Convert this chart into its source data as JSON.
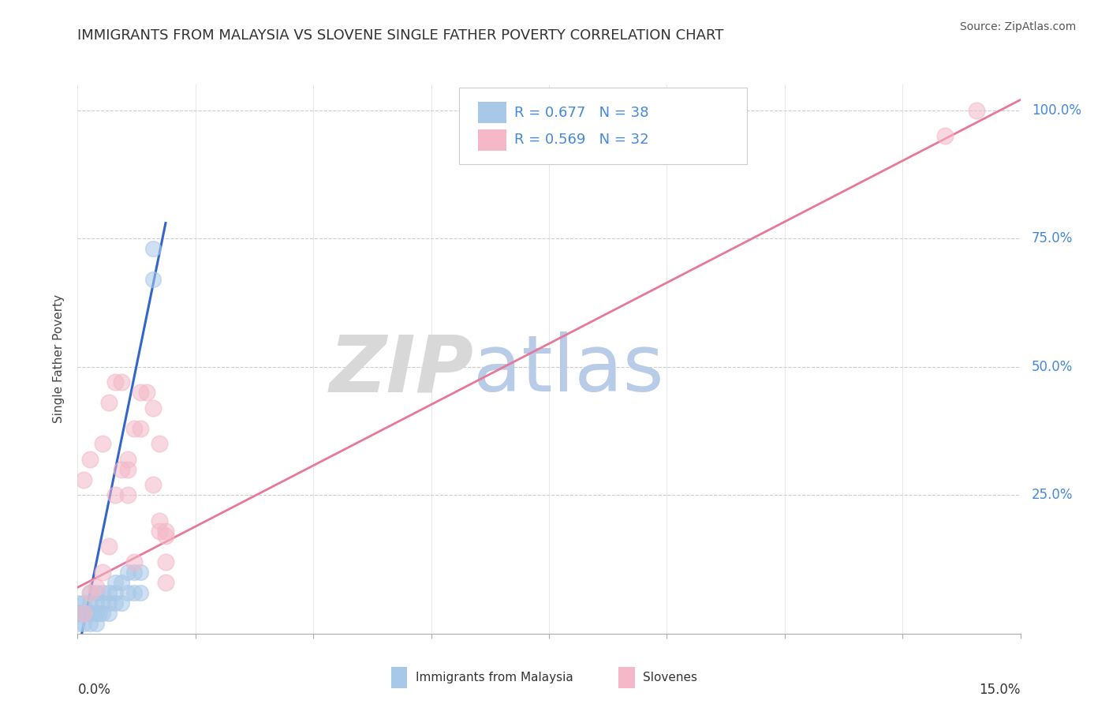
{
  "title": "IMMIGRANTS FROM MALAYSIA VS SLOVENE SINGLE FATHER POVERTY CORRELATION CHART",
  "source": "Source: ZipAtlas.com",
  "ylabel": "Single Father Poverty",
  "legend_label1": "Immigrants from Malaysia",
  "legend_label2": "Slovenes",
  "r1": 0.677,
  "n1": 38,
  "r2": 0.569,
  "n2": 32,
  "color_blue": "#a8c8e8",
  "color_blue_line": "#3366cc",
  "color_pink": "#f4b8c8",
  "color_pink_line": "#e87898",
  "xlim": [
    0.0,
    0.15
  ],
  "ylim": [
    -0.02,
    1.05
  ],
  "bg_color": "#ffffff",
  "grid_color": "#cccccc",
  "blue_x": [
    0.0003,
    0.0005,
    0.001,
    0.0015,
    0.001,
    0.002,
    0.002,
    0.0025,
    0.002,
    0.003,
    0.003,
    0.0035,
    0.003,
    0.004,
    0.004,
    0.004,
    0.005,
    0.005,
    0.005,
    0.006,
    0.006,
    0.006,
    0.007,
    0.007,
    0.008,
    0.008,
    0.009,
    0.009,
    0.01,
    0.01,
    0.0,
    0.0,
    0.0,
    0.001,
    0.002,
    0.003,
    0.012,
    0.012
  ],
  "blue_y": [
    0.02,
    0.02,
    0.02,
    0.02,
    0.04,
    0.02,
    0.04,
    0.02,
    0.06,
    0.02,
    0.04,
    0.02,
    0.06,
    0.02,
    0.04,
    0.06,
    0.02,
    0.04,
    0.06,
    0.04,
    0.06,
    0.08,
    0.04,
    0.08,
    0.06,
    0.1,
    0.06,
    0.1,
    0.06,
    0.1,
    0.02,
    0.04,
    0.0,
    0.0,
    0.0,
    0.0,
    0.67,
    0.73
  ],
  "pink_x": [
    0.001,
    0.002,
    0.002,
    0.003,
    0.004,
    0.004,
    0.005,
    0.005,
    0.006,
    0.006,
    0.007,
    0.007,
    0.008,
    0.008,
    0.008,
    0.009,
    0.009,
    0.01,
    0.01,
    0.011,
    0.012,
    0.012,
    0.013,
    0.013,
    0.013,
    0.014,
    0.014,
    0.014,
    0.014,
    0.001,
    0.138,
    0.143
  ],
  "pink_y": [
    0.28,
    0.32,
    0.06,
    0.07,
    0.1,
    0.35,
    0.15,
    0.43,
    0.25,
    0.47,
    0.3,
    0.47,
    0.32,
    0.25,
    0.3,
    0.38,
    0.12,
    0.38,
    0.45,
    0.45,
    0.42,
    0.27,
    0.35,
    0.2,
    0.18,
    0.18,
    0.12,
    0.17,
    0.08,
    0.02,
    0.95,
    1.0
  ],
  "blue_line_x": [
    0.0,
    0.014
  ],
  "blue_line_y": [
    -0.06,
    0.78
  ],
  "pink_line_x": [
    0.0,
    0.15
  ],
  "pink_line_y": [
    0.07,
    1.02
  ]
}
